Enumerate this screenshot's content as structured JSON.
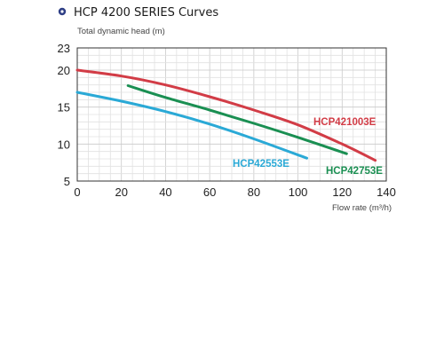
{
  "chart_data": {
    "type": "line",
    "title": "HCP 4200 SERIES Curves",
    "ylabel": "Total dynamic head (m)",
    "xlabel": "Flow rate (m³/h)",
    "xlim": [
      0,
      140
    ],
    "ylim": [
      5,
      23
    ],
    "x_ticks": [
      0,
      20,
      40,
      60,
      80,
      100,
      120,
      140
    ],
    "y_ticks": [
      5,
      10,
      15,
      20,
      23
    ],
    "grid": true,
    "series": [
      {
        "name": "HCP421003E",
        "color": "#d23c46",
        "x": [
          0,
          20,
          40,
          60,
          80,
          100,
          120,
          135
        ],
        "y": [
          20.0,
          19.2,
          18.0,
          16.4,
          14.6,
          12.6,
          10.0,
          7.8
        ]
      },
      {
        "name": "HCP42753E",
        "color": "#1a8f52",
        "x": [
          23,
          40,
          60,
          80,
          100,
          122
        ],
        "y": [
          17.9,
          16.3,
          14.6,
          12.8,
          10.9,
          8.7
        ]
      },
      {
        "name": "HCP42553E",
        "color": "#2aa9d6",
        "x": [
          0,
          20,
          40,
          60,
          80,
          104
        ],
        "y": [
          17.0,
          15.8,
          14.4,
          12.7,
          10.7,
          8.1
        ]
      }
    ]
  },
  "header": {
    "bullet_icon": "circle-bullet-icon",
    "bullet_color": "#2f3f86"
  }
}
